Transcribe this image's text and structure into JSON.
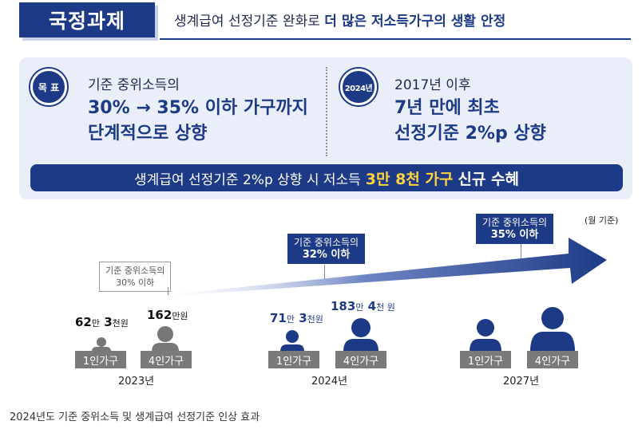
{
  "header": {
    "badge": "국정과제",
    "text_plain": "생계급여 선정기준 완화로 ",
    "text_bold": "더 많은 저소득가구의 생활 안정"
  },
  "goal": {
    "badge": "목 표",
    "line1": "기준 중위소득의",
    "line2": "30% → 35% 이하 가구까지",
    "line3": "단계적으로 상향"
  },
  "year2024": {
    "badge": "2024년",
    "line1": "2017년 이후",
    "line2": "7년 만에 최초",
    "line3": "선정기준 2%p 상향"
  },
  "banner": {
    "plain": "생계급여 선정기준 2%p 상향 시 저소득",
    "highlight": "3만 8천 가구",
    "bold": "신규 수혜"
  },
  "unit_note": "(월 기준)",
  "callouts": {
    "y2023": {
      "line1": "기준 중위소득의",
      "line2": "30% 이하"
    },
    "y2024": {
      "line1": "기준 중위소득의",
      "line2": "32% 이하"
    },
    "y2027": {
      "line1": "기준 중위소득의",
      "line2": "35% 이하"
    }
  },
  "amounts": {
    "y2023_one": {
      "a": "62",
      "u1": "만",
      "b": "3",
      "u2": "천원"
    },
    "y2023_four": {
      "a": "162",
      "u1": "만원"
    },
    "y2024_one": {
      "a": "71",
      "u1": "만",
      "b": "3",
      "u2": "천원"
    },
    "y2024_four": {
      "a": "183",
      "u1": "만",
      "b": "4",
      "u2": "천 원"
    }
  },
  "household_labels": {
    "one": "1인가구",
    "four": "4인가구"
  },
  "years": [
    "2023년",
    "2024년",
    "2027년"
  ],
  "caption": "2024년도 기준 중위소득 및 생계급여 선정기준 인상 효과",
  "colors": {
    "navy": "#1d3a86",
    "gray": "#7a7a7a",
    "panel": "#e9eef8",
    "highlight": "#ffd23f"
  }
}
